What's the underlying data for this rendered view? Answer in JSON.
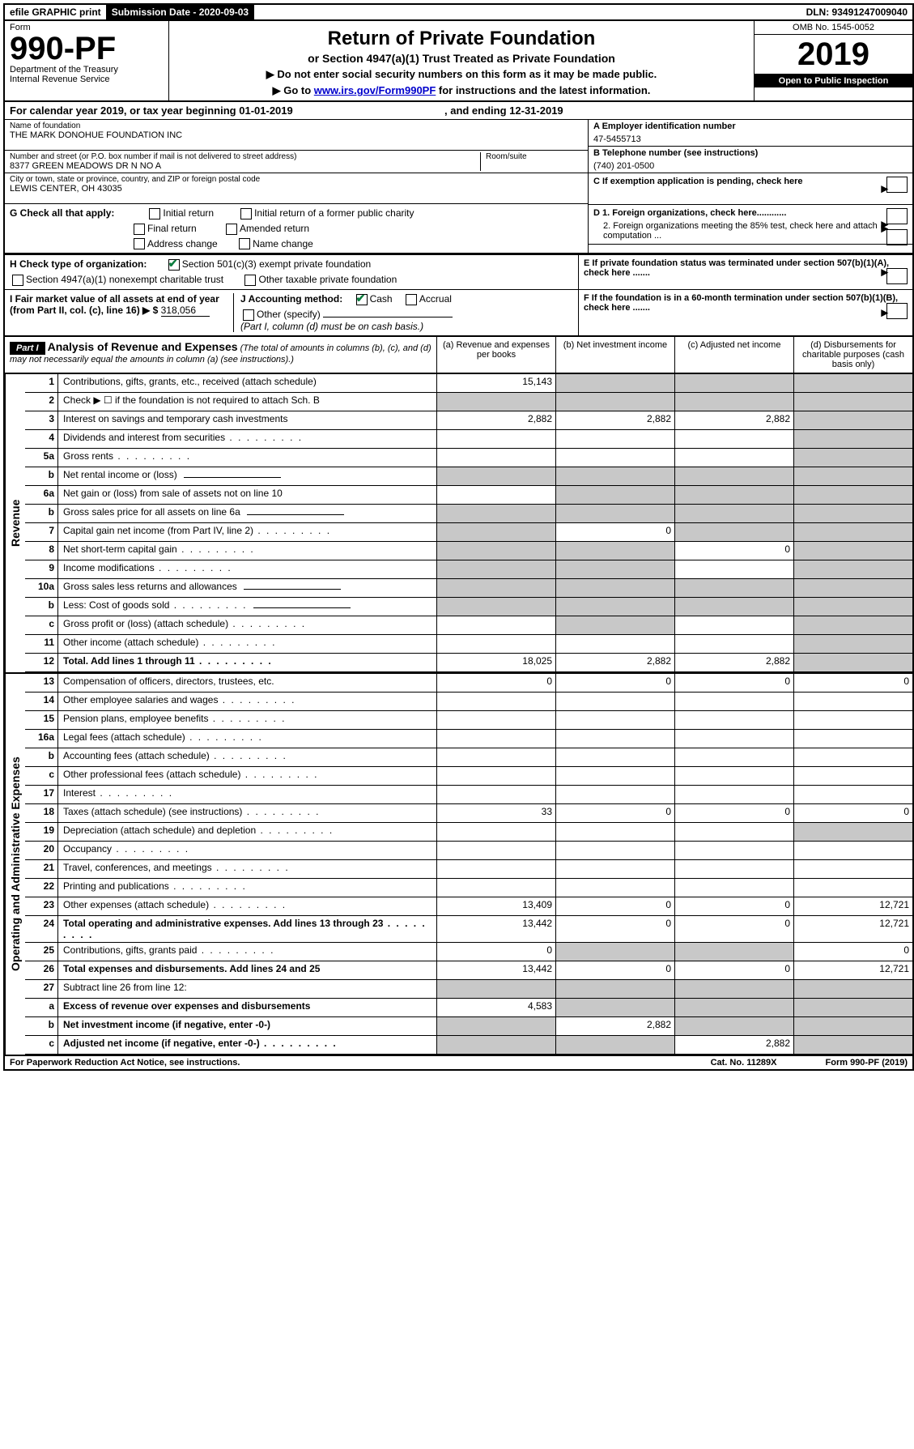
{
  "topbar": {
    "efile": "efile GRAPHIC print",
    "submission_label": "Submission Date - 2020-09-03",
    "dln": "DLN: 93491247009040"
  },
  "header": {
    "form_label": "Form",
    "form_number": "990-PF",
    "dept": "Department of the Treasury",
    "irs": "Internal Revenue Service",
    "title": "Return of Private Foundation",
    "subtitle": "or Section 4947(a)(1) Trust Treated as Private Foundation",
    "instr1": "▶ Do not enter social security numbers on this form as it may be made public.",
    "instr2_prefix": "▶ Go to ",
    "instr2_link": "www.irs.gov/Form990PF",
    "instr2_suffix": " for instructions and the latest information.",
    "omb": "OMB No. 1545-0052",
    "year": "2019",
    "open_public": "Open to Public Inspection"
  },
  "calyear": {
    "prefix": "For calendar year 2019, or tax year beginning ",
    "begin": "01-01-2019",
    "mid": " , and ending ",
    "end": "12-31-2019"
  },
  "info": {
    "name_lbl": "Name of foundation",
    "name": "THE MARK DONOHUE FOUNDATION INC",
    "addr_lbl": "Number and street (or P.O. box number if mail is not delivered to street address)",
    "addr": "8377 GREEN MEADOWS DR N NO A",
    "room_lbl": "Room/suite",
    "city_lbl": "City or town, state or province, country, and ZIP or foreign postal code",
    "city": "LEWIS CENTER, OH  43035",
    "ein_lbl": "A Employer identification number",
    "ein": "47-5455713",
    "phone_lbl": "B Telephone number (see instructions)",
    "phone": "(740) 201-0500",
    "c_lbl": "C If exemption application is pending, check here",
    "d1": "D 1. Foreign organizations, check here............",
    "d2": "2. Foreign organizations meeting the 85% test, check here and attach computation ...",
    "e_lbl": "E  If private foundation status was terminated under section 507(b)(1)(A), check here .......",
    "f_lbl": "F  If the foundation is in a 60-month termination under section 507(b)(1)(B), check here .......",
    "g_lbl": "G Check all that apply:",
    "g_items": [
      "Initial return",
      "Initial return of a former public charity",
      "Final return",
      "Amended return",
      "Address change",
      "Name change"
    ],
    "h_lbl": "H Check type of organization:",
    "h1": "Section 501(c)(3) exempt private foundation",
    "h2": "Section 4947(a)(1) nonexempt charitable trust",
    "h3": "Other taxable private foundation",
    "i_lbl": "I Fair market value of all assets at end of year (from Part II, col. (c), line 16) ▶ $",
    "i_val": "318,056",
    "j_lbl": "J Accounting method:",
    "j_cash": "Cash",
    "j_accrual": "Accrual",
    "j_other": "Other (specify)",
    "j_note": "(Part I, column (d) must be on cash basis.)"
  },
  "part1": {
    "label": "Part I",
    "title": "Analysis of Revenue and Expenses",
    "note": "(The total of amounts in columns (b), (c), and (d) may not necessarily equal the amounts in column (a) (see instructions).)",
    "cols": [
      "(a)   Revenue and expenses per books",
      "(b)  Net investment income",
      "(c)  Adjusted net income",
      "(d)  Disbursements for charitable purposes (cash basis only)"
    ]
  },
  "side_labels": {
    "revenue": "Revenue",
    "opex": "Operating and Administrative Expenses"
  },
  "rows_revenue": [
    {
      "num": "1",
      "desc": "Contributions, gifts, grants, etc., received (attach schedule)",
      "a": "15,143",
      "b_grey": true,
      "c_grey": true,
      "d_grey": true
    },
    {
      "num": "2",
      "desc": "Check ▶ ☐ if the foundation is not required to attach Sch. B",
      "desc_dots": true,
      "a_grey": true,
      "b_grey": true,
      "c_grey": true,
      "d_grey": true
    },
    {
      "num": "3",
      "desc": "Interest on savings and temporary cash investments",
      "a": "2,882",
      "b": "2,882",
      "c": "2,882",
      "d_grey": true
    },
    {
      "num": "4",
      "desc": "Dividends and interest from securities",
      "dots": true,
      "d_grey": true
    },
    {
      "num": "5a",
      "desc": "Gross rents",
      "dots": true,
      "d_grey": true
    },
    {
      "num": "b",
      "desc": "Net rental income or (loss)",
      "underline": true,
      "a_grey": true,
      "b_grey": true,
      "c_grey": true,
      "d_grey": true
    },
    {
      "num": "6a",
      "desc": "Net gain or (loss) from sale of assets not on line 10",
      "b_grey": true,
      "c_grey": true,
      "d_grey": true
    },
    {
      "num": "b",
      "desc": "Gross sales price for all assets on line 6a",
      "underline": true,
      "a_grey": true,
      "b_grey": true,
      "c_grey": true,
      "d_grey": true
    },
    {
      "num": "7",
      "desc": "Capital gain net income (from Part IV, line 2)",
      "dots": true,
      "a_grey": true,
      "b": "0",
      "c_grey": true,
      "d_grey": true
    },
    {
      "num": "8",
      "desc": "Net short-term capital gain",
      "dots": true,
      "a_grey": true,
      "b_grey": true,
      "c": "0",
      "d_grey": true
    },
    {
      "num": "9",
      "desc": "Income modifications",
      "dots": true,
      "a_grey": true,
      "b_grey": true,
      "d_grey": true
    },
    {
      "num": "10a",
      "desc": "Gross sales less returns and allowances",
      "underline": true,
      "a_grey": true,
      "b_grey": true,
      "c_grey": true,
      "d_grey": true
    },
    {
      "num": "b",
      "desc": "Less: Cost of goods sold",
      "dots": true,
      "underline": true,
      "a_grey": true,
      "b_grey": true,
      "c_grey": true,
      "d_grey": true
    },
    {
      "num": "c",
      "desc": "Gross profit or (loss) (attach schedule)",
      "dots": true,
      "b_grey": true,
      "d_grey": true
    },
    {
      "num": "11",
      "desc": "Other income (attach schedule)",
      "dots": true,
      "d_grey": true
    },
    {
      "num": "12",
      "desc": "Total. Add lines 1 through 11",
      "bold": true,
      "dots": true,
      "a": "18,025",
      "b": "2,882",
      "c": "2,882",
      "d_grey": true
    }
  ],
  "rows_opex": [
    {
      "num": "13",
      "desc": "Compensation of officers, directors, trustees, etc.",
      "a": "0",
      "b": "0",
      "c": "0",
      "d": "0"
    },
    {
      "num": "14",
      "desc": "Other employee salaries and wages",
      "dots": true
    },
    {
      "num": "15",
      "desc": "Pension plans, employee benefits",
      "dots": true
    },
    {
      "num": "16a",
      "desc": "Legal fees (attach schedule)",
      "dots": true
    },
    {
      "num": "b",
      "desc": "Accounting fees (attach schedule)",
      "dots": true
    },
    {
      "num": "c",
      "desc": "Other professional fees (attach schedule)",
      "dots": true
    },
    {
      "num": "17",
      "desc": "Interest",
      "dots": true
    },
    {
      "num": "18",
      "desc": "Taxes (attach schedule) (see instructions)",
      "dots": true,
      "a": "33",
      "b": "0",
      "c": "0",
      "d": "0"
    },
    {
      "num": "19",
      "desc": "Depreciation (attach schedule) and depletion",
      "dots": true,
      "d_grey": true
    },
    {
      "num": "20",
      "desc": "Occupancy",
      "dots": true
    },
    {
      "num": "21",
      "desc": "Travel, conferences, and meetings",
      "dots": true
    },
    {
      "num": "22",
      "desc": "Printing and publications",
      "dots": true
    },
    {
      "num": "23",
      "desc": "Other expenses (attach schedule)",
      "dots": true,
      "a": "13,409",
      "b": "0",
      "c": "0",
      "d": "12,721"
    },
    {
      "num": "24",
      "desc": "Total operating and administrative expenses. Add lines 13 through 23",
      "bold": true,
      "dots": true,
      "a": "13,442",
      "b": "0",
      "c": "0",
      "d": "12,721"
    },
    {
      "num": "25",
      "desc": "Contributions, gifts, grants paid",
      "dots": true,
      "a": "0",
      "b_grey": true,
      "c_grey": true,
      "d": "0"
    },
    {
      "num": "26",
      "desc": "Total expenses and disbursements. Add lines 24 and 25",
      "bold": true,
      "a": "13,442",
      "b": "0",
      "c": "0",
      "d": "12,721"
    },
    {
      "num": "27",
      "desc": "Subtract line 26 from line 12:",
      "a_grey": true,
      "b_grey": true,
      "c_grey": true,
      "d_grey": true
    },
    {
      "num": "a",
      "desc": "Excess of revenue over expenses and disbursements",
      "bold": true,
      "a": "4,583",
      "b_grey": true,
      "c_grey": true,
      "d_grey": true
    },
    {
      "num": "b",
      "desc": "Net investment income (if negative, enter -0-)",
      "bold": true,
      "a_grey": true,
      "b": "2,882",
      "c_grey": true,
      "d_grey": true
    },
    {
      "num": "c",
      "desc": "Adjusted net income (if negative, enter -0-)",
      "bold": true,
      "dots": true,
      "a_grey": true,
      "b_grey": true,
      "c": "2,882",
      "d_grey": true
    }
  ],
  "footer": {
    "left": "For Paperwork Reduction Act Notice, see instructions.",
    "cat": "Cat. No. 11289X",
    "form": "Form 990-PF (2019)"
  }
}
